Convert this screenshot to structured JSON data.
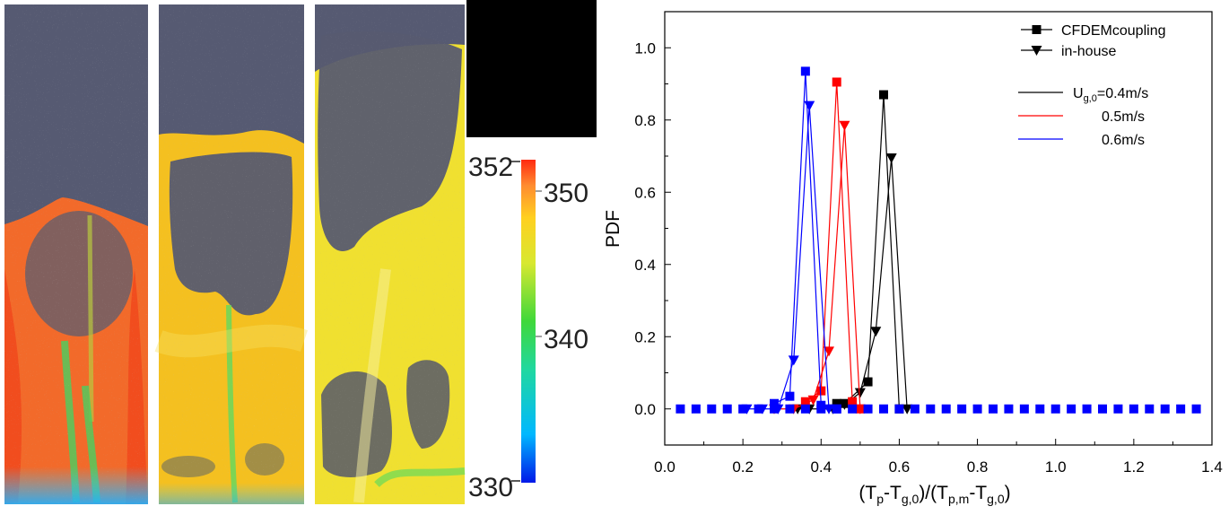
{
  "colorbar": {
    "min_label": "330",
    "max_label": "352",
    "ticks": [
      "350",
      "340"
    ]
  },
  "panels": [
    "U_g,0=0.4m/s",
    "U_g,0=0.5m/s",
    "U_g,0=0.6m/s"
  ],
  "chart_data": {
    "type": "line",
    "ylabel": "PDF",
    "xlabel_parts": {
      "p1": "(T",
      "s1": "p",
      "p2": "-T",
      "s2": "g,0",
      "p3": ")/(T",
      "s3": "p,m",
      "p4": "-T",
      "s4": "g,0",
      "p5": ")"
    },
    "xlim": [
      0.0,
      1.4
    ],
    "ylim": [
      -0.1,
      1.1
    ],
    "xticks": [
      "0.0",
      "0.2",
      "0.4",
      "0.6",
      "0.8",
      "1.0",
      "1.2",
      "1.4"
    ],
    "yticks": [
      "0.0",
      "0.2",
      "0.4",
      "0.6",
      "0.8",
      "1.0"
    ],
    "legend_markers": [
      {
        "name": "CFDEMcoupling",
        "marker": "square"
      },
      {
        "name": "in-house",
        "marker": "triangle-down"
      }
    ],
    "legend_colors": [
      {
        "pre": "U",
        "sub": "g,0",
        "post": "=0.4m/s",
        "color": "#000000"
      },
      {
        "pre": "",
        "sub": "",
        "post": "0.5m/s",
        "color": "#ff0000"
      },
      {
        "pre": "",
        "sub": "",
        "post": "0.6m/s",
        "color": "#0000ff"
      }
    ],
    "series": [
      {
        "color": "#000000",
        "marker": "square",
        "x": [
          0.44,
          0.46,
          0.52,
          0.56,
          0.6
        ],
        "y": [
          0.015,
          0.015,
          0.075,
          0.87,
          0.0
        ]
      },
      {
        "color": "#000000",
        "marker": "triangle-down",
        "x": [
          0.34,
          0.37,
          0.43,
          0.46,
          0.5,
          0.54,
          0.58,
          0.62
        ],
        "y": [
          0.0,
          0.0,
          0.0,
          0.012,
          0.045,
          0.215,
          0.695,
          0.0
        ]
      },
      {
        "color": "#ff0000",
        "marker": "square",
        "x": [
          0.36,
          0.4,
          0.44,
          0.48,
          0.5
        ],
        "y": [
          0.02,
          0.05,
          0.905,
          0.02,
          0.0
        ]
      },
      {
        "color": "#ff0000",
        "marker": "triangle-down",
        "x": [
          0.28,
          0.33,
          0.38,
          0.42,
          0.46,
          0.5
        ],
        "y": [
          0.0,
          0.0,
          0.025,
          0.16,
          0.785,
          0.0
        ]
      },
      {
        "color": "#0000ff",
        "marker": "square",
        "x": [
          0.28,
          0.32,
          0.36,
          0.4,
          0.44
        ],
        "y": [
          0.015,
          0.035,
          0.935,
          0.01,
          0.0
        ]
      },
      {
        "color": "#0000ff",
        "marker": "triangle-down",
        "x": [
          0.21,
          0.25,
          0.29,
          0.33,
          0.37,
          0.42
        ],
        "y": [
          0.0,
          0.0,
          0.0,
          0.135,
          0.84,
          0.0
        ]
      }
    ],
    "baseline": {
      "color": "#0000ff",
      "marker": "square",
      "x_start": 0.04,
      "x_step": 0.04,
      "count": 34,
      "y": 0.0
    }
  }
}
